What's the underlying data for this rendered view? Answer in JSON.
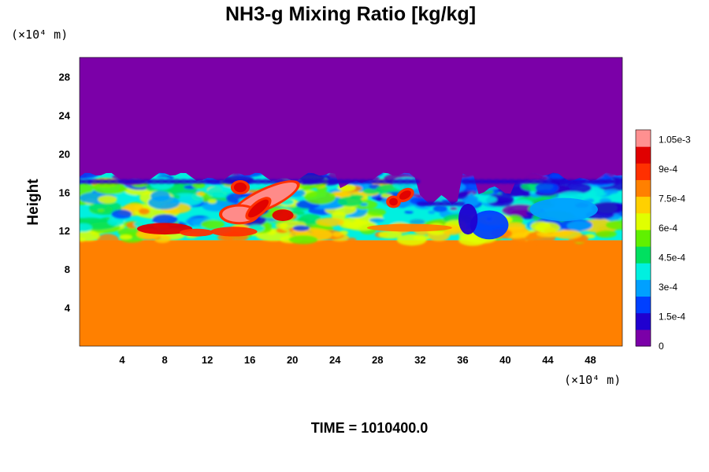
{
  "chart_data": {
    "type": "heatmap",
    "title": "NH3-g Mixing Ratio [kg/kg]",
    "ylabel": "Height",
    "xlabel": "",
    "x_unit_label": "(×10⁴ m)",
    "y_unit_label": "(×10⁴ m)",
    "xlim": [
      0,
      51
    ],
    "ylim": [
      0,
      30
    ],
    "x_ticks": [
      "4",
      "8",
      "12",
      "16",
      "20",
      "24",
      "28",
      "32",
      "36",
      "40",
      "44",
      "48"
    ],
    "y_ticks": [
      "4",
      "8",
      "12",
      "16",
      "20",
      "24",
      "28"
    ],
    "colorbar": {
      "range": [
        0,
        0.0011
      ],
      "tick_labels": [
        "0",
        "1.5e-4",
        "3e-4",
        "4.5e-4",
        "6e-4",
        "7.5e-4",
        "9e-4",
        "1.05e-3"
      ],
      "tick_values": [
        0,
        0.00015,
        0.0003,
        0.00045,
        0.0006,
        0.00075,
        0.0009,
        0.00105
      ],
      "colors": [
        "#7b00a8",
        "#2000d0",
        "#0040ff",
        "#00a0ff",
        "#00f0e0",
        "#00e060",
        "#60f000",
        "#e0ff00",
        "#ffd000",
        "#ff8000",
        "#ff3000",
        "#e00000",
        "#ff9090"
      ]
    },
    "fields": {
      "upper_region": {
        "y_from": 18,
        "y_to": 30,
        "value": 0
      },
      "lower_region": {
        "y_from": 0,
        "y_to": 11,
        "value": 0.00079
      },
      "mixing_layer": {
        "y_from": 11,
        "y_to": 18,
        "value_range": [
          0,
          0.0011
        ]
      }
    },
    "grid": false,
    "legend": "colorbar-right"
  },
  "footer": {
    "time_label": "TIME = 1010400.0"
  }
}
